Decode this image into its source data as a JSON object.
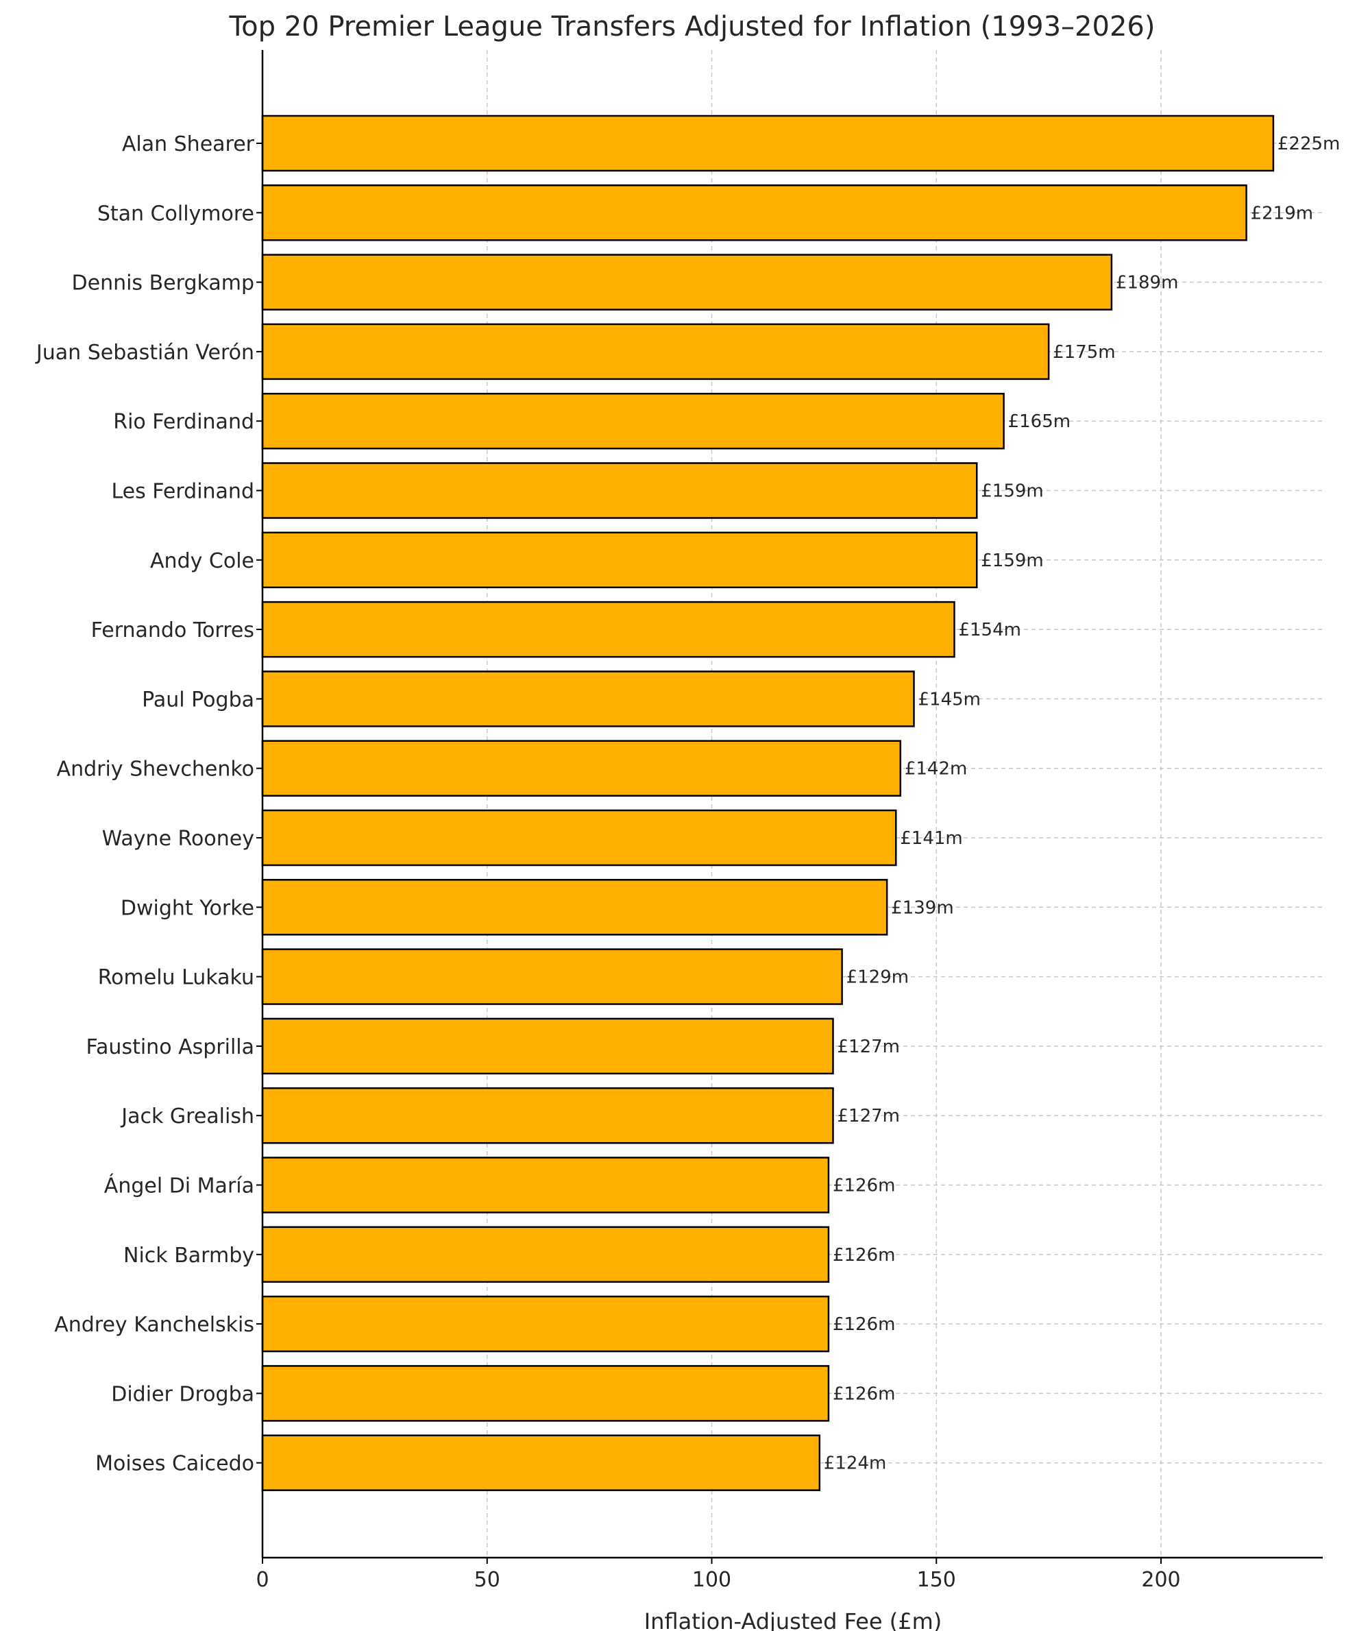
{
  "chart_data": {
    "type": "bar",
    "orientation": "horizontal",
    "title": "Top 20 Premier League Transfers Adjusted for Inflation (1993–2026)",
    "xlabel": "Inflation-Adjusted Fee (£m)",
    "ylabel": "",
    "xlim": [
      0,
      236
    ],
    "xticks": [
      0,
      50,
      100,
      150,
      200
    ],
    "grid": true,
    "bar_color": "#FFB000",
    "edge_color": "#000000",
    "categories": [
      "Alan Shearer",
      "Stan Collymore",
      "Dennis Bergkamp",
      "Juan Sebastián Verón",
      "Rio Ferdinand",
      "Les Ferdinand",
      "Andy Cole",
      "Fernando Torres",
      "Paul Pogba",
      "Andriy Shevchenko",
      "Wayne Rooney",
      "Dwight Yorke",
      "Romelu Lukaku",
      "Faustino Asprilla",
      "Jack Grealish",
      "Ángel Di María",
      "Nick Barmby",
      "Andrey Kanchelskis",
      "Didier Drogba",
      "Moises Caicedo"
    ],
    "values": [
      225,
      219,
      189,
      175,
      165,
      159,
      159,
      154,
      145,
      142,
      141,
      139,
      129,
      127,
      127,
      126,
      126,
      126,
      126,
      124
    ],
    "data_labels": [
      "£225m",
      "£219m",
      "£189m",
      "£175m",
      "£165m",
      "£159m",
      "£159m",
      "£154m",
      "£145m",
      "£142m",
      "£141m",
      "£139m",
      "£129m",
      "£127m",
      "£127m",
      "£126m",
      "£126m",
      "£126m",
      "£126m",
      "£124m"
    ]
  }
}
